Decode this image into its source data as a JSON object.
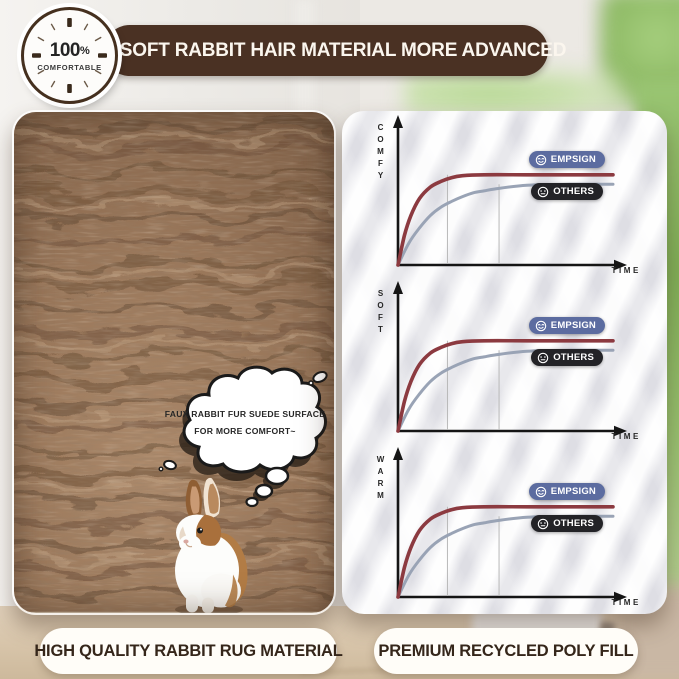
{
  "header": {
    "badge": {
      "value": "100",
      "percent": "%",
      "label": "COMFORTABLE"
    },
    "title": "SOFT RABBIT HAIR MATERIAL MORE ADVANCED"
  },
  "rug_panel": {
    "thought_bubble": {
      "line1": "FAUX RABBIT FUR SUEDE SURFACE",
      "line2": "FOR MORE COMFORT~"
    },
    "caption": "HIGH QUALITY RABBIT RUG MATERIAL"
  },
  "chart_panel": {
    "caption": "PREMIUM RECYCLED POLY FILL"
  },
  "chart_data": [
    {
      "type": "line",
      "ylabel": "COMFY",
      "xlabel": "TIME",
      "x_range": [
        0,
        10
      ],
      "y_range": [
        0,
        1
      ],
      "grid": false,
      "legend_position": "inside-right",
      "guides_x": [
        2.3,
        4.7
      ],
      "series": [
        {
          "name": "EMPSIGN",
          "color": "#8c3a40",
          "plateau": 0.95,
          "points": [
            [
              0,
              0
            ],
            [
              0.3,
              0.31
            ],
            [
              0.6,
              0.52
            ],
            [
              1,
              0.7
            ],
            [
              1.5,
              0.82
            ],
            [
              2,
              0.88
            ],
            [
              2.5,
              0.92
            ],
            [
              3,
              0.94
            ],
            [
              4,
              0.95
            ],
            [
              6,
              0.95
            ],
            [
              8,
              0.95
            ],
            [
              10,
              0.95
            ]
          ]
        },
        {
          "name": "OTHERS",
          "color": "#99a3b5",
          "plateau": 0.85,
          "points": [
            [
              0,
              0
            ],
            [
              0.5,
              0.23
            ],
            [
              1,
              0.39
            ],
            [
              1.5,
              0.52
            ],
            [
              2,
              0.61
            ],
            [
              2.5,
              0.67
            ],
            [
              3,
              0.72
            ],
            [
              3.5,
              0.76
            ],
            [
              4,
              0.78
            ],
            [
              4.5,
              0.8
            ],
            [
              6,
              0.84
            ],
            [
              8,
              0.85
            ],
            [
              10,
              0.85
            ]
          ]
        }
      ]
    },
    {
      "type": "line",
      "ylabel": "SOFT",
      "xlabel": "TIME",
      "x_range": [
        0,
        10
      ],
      "y_range": [
        0,
        1
      ],
      "grid": false,
      "legend_position": "inside-right",
      "guides_x": [
        2.3,
        4.7
      ],
      "series": [
        {
          "name": "EMPSIGN",
          "color": "#8c3a40",
          "plateau": 0.95,
          "points": [
            [
              0,
              0
            ],
            [
              0.3,
              0.31
            ],
            [
              0.6,
              0.52
            ],
            [
              1,
              0.7
            ],
            [
              1.5,
              0.82
            ],
            [
              2,
              0.88
            ],
            [
              2.5,
              0.92
            ],
            [
              3,
              0.94
            ],
            [
              4,
              0.95
            ],
            [
              6,
              0.95
            ],
            [
              8,
              0.95
            ],
            [
              10,
              0.95
            ]
          ]
        },
        {
          "name": "OTHERS",
          "color": "#99a3b5",
          "plateau": 0.85,
          "points": [
            [
              0,
              0
            ],
            [
              0.5,
              0.23
            ],
            [
              1,
              0.39
            ],
            [
              1.5,
              0.52
            ],
            [
              2,
              0.61
            ],
            [
              2.5,
              0.67
            ],
            [
              3,
              0.72
            ],
            [
              3.5,
              0.76
            ],
            [
              4,
              0.78
            ],
            [
              4.5,
              0.8
            ],
            [
              6,
              0.84
            ],
            [
              8,
              0.85
            ],
            [
              10,
              0.85
            ]
          ]
        }
      ]
    },
    {
      "type": "line",
      "ylabel": "WARM",
      "xlabel": "TIME",
      "x_range": [
        0,
        10
      ],
      "y_range": [
        0,
        1
      ],
      "grid": false,
      "legend_position": "inside-right",
      "guides_x": [
        2.3,
        4.7
      ],
      "series": [
        {
          "name": "EMPSIGN",
          "color": "#8c3a40",
          "plateau": 0.95,
          "points": [
            [
              0,
              0
            ],
            [
              0.3,
              0.31
            ],
            [
              0.6,
              0.52
            ],
            [
              1,
              0.7
            ],
            [
              1.5,
              0.82
            ],
            [
              2,
              0.88
            ],
            [
              2.5,
              0.92
            ],
            [
              3,
              0.94
            ],
            [
              4,
              0.95
            ],
            [
              6,
              0.95
            ],
            [
              8,
              0.95
            ],
            [
              10,
              0.95
            ]
          ]
        },
        {
          "name": "OTHERS",
          "color": "#99a3b5",
          "plateau": 0.85,
          "points": [
            [
              0,
              0
            ],
            [
              0.5,
              0.23
            ],
            [
              1,
              0.39
            ],
            [
              1.5,
              0.52
            ],
            [
              2,
              0.61
            ],
            [
              2.5,
              0.67
            ],
            [
              3,
              0.72
            ],
            [
              3.5,
              0.76
            ],
            [
              4,
              0.78
            ],
            [
              4.5,
              0.8
            ],
            [
              6,
              0.84
            ],
            [
              8,
              0.85
            ],
            [
              10,
              0.85
            ]
          ]
        }
      ]
    }
  ],
  "colors": {
    "banner_brown": "#4a3123",
    "brand_pill_blue": "#5c6ca0",
    "others_pill_black": "#232327",
    "empsign_curve_red": "#8c3a40",
    "others_curve_gray": "#99a3b5",
    "rug_brown": "#9a7a60"
  }
}
